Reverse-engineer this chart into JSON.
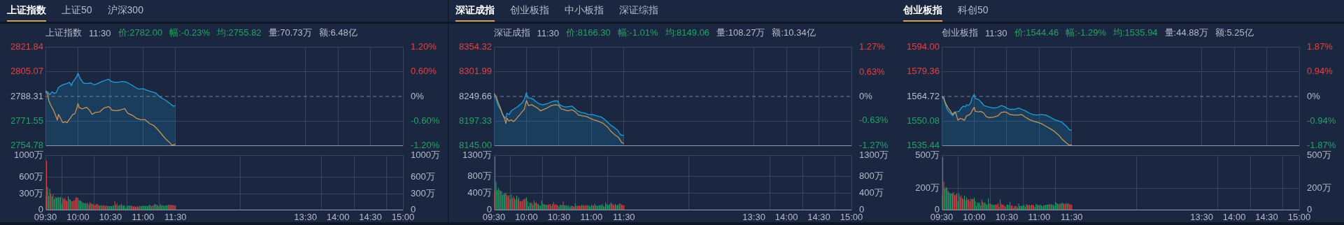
{
  "chart_data": [
    {
      "type": "other",
      "title": "上证指数",
      "annotations": [
        "上证50",
        "沪深300"
      ]
    },
    {
      "type": "line",
      "title": "上证指数",
      "subtitle": "11:30",
      "annotations": [
        "价:2782.00",
        "幅:-0.23%",
        "均:2755.82",
        "量:70.73万",
        "额:6.48亿"
      ],
      "xlim": [
        9.5,
        15
      ],
      "xticks": [
        {
          "value": 9.5,
          "label": null
        },
        {
          "value": 10,
          "label": null
        },
        {
          "value": 10.5,
          "label": null
        },
        {
          "value": 11,
          "label": null
        },
        {
          "value": 11.5,
          "label": null
        },
        {
          "value": 13.5,
          "label": null
        },
        {
          "value": 14,
          "label": null
        },
        {
          "value": 14.5,
          "label": null
        },
        {
          "value": 15,
          "label": null
        }
      ],
      "ylim": [
        2754.78,
        2821.84
      ],
      "yticks": [
        2754.78,
        2771.55,
        2788.31,
        2805.07,
        2821.84
      ],
      "y2lim": [
        -1.2,
        1.2
      ],
      "y2ticks": [
        {
          "value": -1.2,
          "label": "-1.20%"
        },
        {
          "value": -0.6,
          "label": "-0.60%"
        },
        {
          "value": 0,
          "label": "0%"
        },
        {
          "value": 0.6,
          "label": "0.60%"
        },
        {
          "value": 1.2,
          "label": "1.20%"
        }
      ],
      "tick_labels": "y",
      "grid": true,
      "marker": "none",
      "ref_lines": [
        {
          "axis": "y",
          "value": 2788.31,
          "color": "#7a8292",
          "line_style": "dashed"
        }
      ],
      "series": [
        {
          "type": "area",
          "color": "#1e9fd8",
          "x": [
            9.5,
            9.533,
            9.567,
            9.6,
            9.633,
            9.667,
            9.7,
            9.733,
            9.783,
            9.833,
            9.867,
            9.9,
            9.917,
            9.95,
            9.983,
            10,
            10.033,
            10.083,
            10.133,
            10.2,
            10.25,
            10.3,
            10.367,
            10.417,
            10.467,
            10.5,
            10.55,
            10.617,
            10.683,
            10.75,
            10.817,
            10.883,
            10.933,
            11,
            11.067,
            11.133,
            11.2,
            11.25,
            11.3,
            11.35,
            11.417,
            11.467,
            11.5
          ],
          "values": [
            2792.2,
            2791.5,
            2789.5,
            2791.5,
            2790.4,
            2791.0,
            2794.5,
            2795.4,
            2796.6,
            2797.1,
            2798.0,
            2795.7,
            2798.0,
            2799.8,
            2802.1,
            2804.2,
            2800.7,
            2797.5,
            2797.1,
            2797.5,
            2796.3,
            2797.1,
            2798.5,
            2799.3,
            2800.1,
            2798.9,
            2798.0,
            2798.0,
            2798.5,
            2798.0,
            2796.3,
            2794.5,
            2793.3,
            2793.6,
            2792.4,
            2791.5,
            2790.6,
            2788.3,
            2786.9,
            2785.7,
            2783.4,
            2781.6,
            2782.0
          ]
        },
        {
          "type": "line",
          "color": "#c99350",
          "x": [
            9.5,
            9.533,
            9.55,
            9.583,
            9.617,
            9.65,
            9.683,
            9.7,
            9.733,
            9.767,
            9.8,
            9.833,
            9.867,
            9.883,
            9.917,
            9.95,
            9.983,
            10,
            10.017,
            10.067,
            10.1,
            10.133,
            10.183,
            10.217,
            10.267,
            10.333,
            10.4,
            10.467,
            10.5,
            10.517,
            10.583,
            10.65,
            10.717,
            10.767,
            10.85,
            10.9,
            10.967,
            11.033,
            11.1,
            11.167,
            11.233,
            11.3,
            11.35,
            11.417,
            11.45,
            11.5
          ],
          "values": [
            2791.5,
            2790.1,
            2785.7,
            2782.1,
            2779.5,
            2776.0,
            2772.1,
            2776.0,
            2773.3,
            2770.3,
            2771.0,
            2770.3,
            2772.8,
            2773.3,
            2776.0,
            2776.3,
            2780.4,
            2783.5,
            2780.7,
            2779.8,
            2780.4,
            2780.9,
            2778.6,
            2776.0,
            2777.4,
            2777.7,
            2780.4,
            2781.3,
            2780.4,
            2779.0,
            2778.6,
            2779.0,
            2780.0,
            2776.8,
            2775.1,
            2773.3,
            2772.4,
            2772.4,
            2769.8,
            2768.4,
            2765.4,
            2761.8,
            2759.2,
            2756.5,
            2754.8,
            2755.8
          ]
        }
      ]
    },
    {
      "type": "bar",
      "xlim": [
        9.5,
        15
      ],
      "xticks": [
        {
          "value": 9.5,
          "label": "09:30"
        },
        {
          "value": 10,
          "label": "10:00"
        },
        {
          "value": 10.5,
          "label": "10:30"
        },
        {
          "value": 11,
          "label": "11:00"
        },
        {
          "value": 11.5,
          "label": "11:30"
        },
        {
          "value": 13.5,
          "label": "13:30"
        },
        {
          "value": 14,
          "label": "14:00"
        },
        {
          "value": 14.5,
          "label": "14:30"
        },
        {
          "value": 15,
          "label": "15:00"
        }
      ],
      "ylim": [
        0,
        1000
      ],
      "yticks": [
        0,
        {
          "value": 300,
          "label": "300万"
        },
        {
          "value": 600,
          "label": "600万"
        },
        {
          "value": 1000,
          "label": "1000万"
        }
      ],
      "y2lim": [
        0,
        1000
      ],
      "y2ticks": [
        {
          "value": 0,
          "label": "0"
        },
        {
          "value": 300,
          "label": "300万"
        },
        {
          "value": 600,
          "label": "600万"
        },
        {
          "value": 1000,
          "label": "1000万"
        }
      ],
      "grid": true,
      "x": [
        9.5,
        9.517,
        9.533,
        9.55,
        9.567,
        9.583,
        9.6,
        9.617,
        9.633,
        9.65,
        9.667,
        9.683,
        9.7,
        9.717,
        9.733,
        9.75,
        9.767,
        9.783,
        9.8,
        9.817,
        9.833,
        9.85,
        9.867,
        9.883,
        9.9,
        9.917,
        9.933,
        9.95,
        9.967,
        9.983,
        10,
        10.017,
        10.033,
        10.05,
        10.067,
        10.083,
        10.1,
        10.117,
        10.133,
        10.15,
        10.167,
        10.183,
        10.2,
        10.217,
        10.233,
        10.25,
        10.267,
        10.283,
        10.3,
        10.317,
        10.333,
        10.35,
        10.367,
        10.383,
        10.4,
        10.417,
        10.433,
        10.45,
        10.467,
        10.483,
        10.5,
        10.517,
        10.533,
        10.55,
        10.567,
        10.583,
        10.6,
        10.617,
        10.633,
        10.65,
        10.667,
        10.683,
        10.7,
        10.717,
        10.733,
        10.75,
        10.767,
        10.783,
        10.8,
        10.817,
        10.833,
        10.85,
        10.867,
        10.883,
        10.9,
        10.917,
        10.933,
        10.95,
        10.967,
        10.983,
        11,
        11.017,
        11.033,
        11.05,
        11.067,
        11.083,
        11.1,
        11.117,
        11.133,
        11.15,
        11.167,
        11.183,
        11.2,
        11.217,
        11.233,
        11.25,
        11.267,
        11.283,
        11.3,
        11.317,
        11.333,
        11.35,
        11.367,
        11.383,
        11.4,
        11.417,
        11.433,
        11.45,
        11.467,
        11.483,
        11.5
      ],
      "values": [
        270,
        910,
        420,
        260,
        390,
        290,
        250,
        290,
        200,
        240,
        220,
        240,
        230,
        230,
        240,
        110,
        220,
        200,
        220,
        180,
        160,
        250,
        200,
        190,
        160,
        160,
        170,
        180,
        230,
        230,
        220,
        170,
        180,
        160,
        140,
        130,
        120,
        130,
        110,
        130,
        90,
        140,
        120,
        110,
        110,
        90,
        90,
        110,
        110,
        90,
        80,
        90,
        80,
        80,
        90,
        70,
        80,
        80,
        70,
        70,
        70,
        70,
        80,
        80,
        160,
        90,
        120,
        70,
        90,
        90,
        110,
        80,
        80,
        90,
        30,
        70,
        80,
        80,
        80,
        80,
        70,
        60,
        70,
        60,
        60,
        70,
        50,
        80,
        70,
        70,
        80,
        80,
        70,
        80,
        70,
        80,
        100,
        80,
        70,
        80,
        90,
        110,
        100,
        90,
        80,
        70,
        110,
        80,
        90,
        80,
        70,
        90,
        80,
        90,
        100,
        90,
        90,
        90,
        90,
        80,
        80
      ],
      "colors": [
        "#e8413f",
        "#e8413f",
        "#1fa463",
        "#1fa463",
        "#1fa463",
        "#e8413f",
        "#1fa463",
        "#e8413f",
        "#1fa463",
        "#1fa463",
        "#1fa463",
        "#1fa463",
        "#e8413f",
        "#1fa463",
        "#1fa463",
        "#1fa463",
        "#e8413f",
        "#e8413f",
        "#e8413f",
        "#e8413f",
        "#e8413f",
        "#1fa463",
        "#1fa463",
        "#1fa463",
        "#e8413f",
        "#e8413f",
        "#e8413f",
        "#e8413f",
        "#e8413f",
        "#e8413f",
        "#e8413f",
        "#1fa463",
        "#1fa463",
        "#1fa463",
        "#1fa463",
        "#1fa463",
        "#1fa463",
        "#1fa463",
        "#e8413f",
        "#e8413f",
        "#1fa463",
        "#e8413f",
        "#1fa463",
        "#1fa463",
        "#e8413f",
        "#e8413f",
        "#e8413f",
        "#e8413f",
        "#e8413f",
        "#e8413f",
        "#1fa463",
        "#e8413f",
        "#e8413f",
        "#1fa463",
        "#e8413f",
        "#e8413f",
        "#e8413f",
        "#1fa463",
        "#1fa463",
        "#1fa463",
        "#1fa463",
        "#1fa463",
        "#1fa463",
        "#1fa463",
        "#e8413f",
        "#1fa463",
        "#e8413f",
        "#1fa463",
        "#1fa463",
        "#e8413f",
        "#1fa463",
        "#1fa463",
        "#1fa463",
        "#1fa463",
        "#1fa463",
        "#1fa463",
        "#1fa463",
        "#1fa463",
        "#1fa463",
        "#1fa463",
        "#e8413f",
        "#e8413f",
        "#e8413f",
        "#e8413f",
        "#e8413f",
        "#e8413f",
        "#1fa463",
        "#1fa463",
        "#e8413f",
        "#1fa463",
        "#1fa463",
        "#1fa463",
        "#e8413f",
        "#1fa463",
        "#1fa463",
        "#1fa463",
        "#1fa463",
        "#1fa463",
        "#1fa463",
        "#e8413f",
        "#1fa463",
        "#1fa463",
        "#1fa463",
        "#1fa463",
        "#e8413f",
        "#1fa463",
        "#1fa463",
        "#1fa463",
        "#1fa463",
        "#1fa463",
        "#1fa463",
        "#1fa463",
        "#1fa463",
        "#e8413f",
        "#1fa463",
        "#e8413f",
        "#e8413f",
        "#e8413f",
        "#1fa463",
        "#e8413f",
        "#e8413f"
      ]
    },
    {
      "type": "other",
      "title": "深证成指",
      "annotations": [
        "创业板指",
        "中小板指",
        "深证综指"
      ]
    },
    {
      "type": "line",
      "title": "深证成指",
      "subtitle": "11:30",
      "annotations": [
        "价:8166.30",
        "幅:-1.01%",
        "均:8149.06",
        "量:108.27万",
        "额:10.34亿"
      ],
      "xlim": [
        9.5,
        15
      ],
      "xticks": [
        {
          "value": 9.5,
          "label": null
        },
        {
          "value": 10,
          "label": null
        },
        {
          "value": 10.5,
          "label": null
        },
        {
          "value": 11,
          "label": null
        },
        {
          "value": 11.5,
          "label": null
        },
        {
          "value": 13.5,
          "label": null
        },
        {
          "value": 14,
          "label": null
        },
        {
          "value": 14.5,
          "label": null
        },
        {
          "value": 15,
          "label": null
        }
      ],
      "ylim": [
        8145.0,
        8354.32
      ],
      "yticks": [
        {
          "value": 8145,
          "label": "8145.00"
        },
        8197.33,
        8249.66,
        8301.99,
        8354.32
      ],
      "y2lim": [
        -1.27,
        1.27
      ],
      "y2ticks": [
        {
          "value": -1.27,
          "label": "-1.27%"
        },
        {
          "value": -0.63,
          "label": "-0.63%"
        },
        {
          "value": 0,
          "label": "0%"
        },
        {
          "value": 0.63,
          "label": "0.63%"
        },
        {
          "value": 1.27,
          "label": "1.27%"
        }
      ],
      "tick_labels": "y",
      "grid": true,
      "marker": "none",
      "ref_lines": [
        {
          "axis": "y",
          "value": 8249.66,
          "color": "#7a8292",
          "line_style": "dashed"
        }
      ],
      "series": [
        {
          "type": "area",
          "color": "#1e9fd8",
          "x": [
            9.5,
            9.533,
            9.567,
            9.617,
            9.65,
            9.683,
            9.7,
            9.733,
            9.767,
            9.8,
            9.833,
            9.867,
            9.9,
            9.933,
            9.967,
            10,
            10.017,
            10.067,
            10.1,
            10.15,
            10.2,
            10.25,
            10.317,
            10.383,
            10.433,
            10.483,
            10.5,
            10.55,
            10.6,
            10.65,
            10.7,
            10.733,
            10.783,
            10.833,
            10.9,
            10.95,
            11.017,
            11.083,
            11.15,
            11.217,
            11.283,
            11.333,
            11.4,
            11.45,
            11.5
          ],
          "values": [
            8252,
            8244,
            8230,
            8217,
            8208,
            8203,
            8214,
            8211,
            8219,
            8222,
            8225,
            8228,
            8232,
            8236,
            8243,
            8258,
            8247,
            8246,
            8244,
            8238,
            8234,
            8232,
            8234,
            8238,
            8240,
            8240,
            8233,
            8229,
            8227,
            8228,
            8229,
            8225,
            8219,
            8216,
            8214,
            8211,
            8211,
            8208,
            8206,
            8199,
            8190,
            8185,
            8178,
            8168,
            8166
          ]
        },
        {
          "type": "line",
          "color": "#c99350",
          "x": [
            9.5,
            9.533,
            9.567,
            9.6,
            9.633,
            9.667,
            9.683,
            9.7,
            9.733,
            9.767,
            9.8,
            9.833,
            9.867,
            9.9,
            9.933,
            9.967,
            10,
            10.033,
            10.083,
            10.117,
            10.167,
            10.217,
            10.267,
            10.317,
            10.383,
            10.45,
            10.5,
            10.533,
            10.583,
            10.633,
            10.7,
            10.75,
            10.8,
            10.867,
            10.917,
            10.983,
            11.05,
            11.117,
            11.183,
            11.25,
            11.3,
            11.367,
            11.417,
            11.467,
            11.5
          ],
          "values": [
            8256,
            8250,
            8236,
            8225,
            8211,
            8201,
            8192,
            8203,
            8197,
            8200,
            8196,
            8200,
            8206,
            8211,
            8217,
            8222,
            8241,
            8230,
            8232,
            8229,
            8225,
            8219,
            8222,
            8225,
            8230,
            8232,
            8230,
            8223,
            8221,
            8219,
            8221,
            8217,
            8210,
            8208,
            8207,
            8203,
            8199,
            8196,
            8192,
            8184,
            8175,
            8167,
            8162,
            8151,
            8149
          ]
        }
      ]
    },
    {
      "type": "bar",
      "xlim": [
        9.5,
        15
      ],
      "xticks": [
        {
          "value": 9.5,
          "label": "09:30"
        },
        {
          "value": 10,
          "label": "10:00"
        },
        {
          "value": 10.5,
          "label": "10:30"
        },
        {
          "value": 11,
          "label": "11:00"
        },
        {
          "value": 11.5,
          "label": "11:30"
        },
        {
          "value": 13.5,
          "label": "13:30"
        },
        {
          "value": 14,
          "label": "14:00"
        },
        {
          "value": 14.5,
          "label": "14:30"
        },
        {
          "value": 15,
          "label": "15:00"
        }
      ],
      "ylim": [
        0,
        1300
      ],
      "yticks": [
        0,
        {
          "value": 400,
          "label": "400万"
        },
        {
          "value": 800,
          "label": "800万"
        },
        {
          "value": 1300,
          "label": "1300万"
        }
      ],
      "y2lim": [
        0,
        1300
      ],
      "y2ticks": [
        {
          "value": 0,
          "label": "0"
        },
        {
          "value": 400,
          "label": "400万"
        },
        {
          "value": 800,
          "label": "800万"
        },
        {
          "value": 1300,
          "label": "1300万"
        }
      ],
      "grid": true,
      "x": [
        9.5,
        9.517,
        9.533,
        9.55,
        9.567,
        9.583,
        9.6,
        9.617,
        9.633,
        9.65,
        9.667,
        9.683,
        9.7,
        9.717,
        9.733,
        9.75,
        9.767,
        9.783,
        9.8,
        9.817,
        9.833,
        9.85,
        9.867,
        9.883,
        9.9,
        9.917,
        9.933,
        9.95,
        9.967,
        9.983,
        10,
        10.017,
        10.033,
        10.05,
        10.067,
        10.083,
        10.1,
        10.117,
        10.133,
        10.15,
        10.167,
        10.183,
        10.2,
        10.217,
        10.233,
        10.25,
        10.267,
        10.283,
        10.3,
        10.317,
        10.333,
        10.35,
        10.367,
        10.383,
        10.4,
        10.417,
        10.433,
        10.45,
        10.467,
        10.483,
        10.5,
        10.517,
        10.533,
        10.55,
        10.567,
        10.583,
        10.6,
        10.617,
        10.633,
        10.65,
        10.667,
        10.683,
        10.7,
        10.717,
        10.733,
        10.75,
        10.767,
        10.783,
        10.8,
        10.817,
        10.833,
        10.85,
        10.867,
        10.883,
        10.9,
        10.917,
        10.933,
        10.95,
        10.967,
        10.983,
        11,
        11.017,
        11.033,
        11.05,
        11.067,
        11.083,
        11.1,
        11.117,
        11.133,
        11.15,
        11.167,
        11.183,
        11.2,
        11.217,
        11.233,
        11.25,
        11.267,
        11.283,
        11.3,
        11.317,
        11.333,
        11.35,
        11.367,
        11.383,
        11.4,
        11.417,
        11.433,
        11.45,
        11.467,
        11.483,
        11.5
      ],
      "values": [
        460,
        1280,
        670,
        470,
        530,
        480,
        460,
        450,
        360,
        380,
        400,
        400,
        360,
        330,
        350,
        250,
        370,
        280,
        330,
        280,
        250,
        340,
        260,
        300,
        210,
        210,
        200,
        250,
        260,
        270,
        300,
        210,
        90,
        180,
        160,
        180,
        110,
        230,
        160,
        190,
        150,
        140,
        110,
        100,
        230,
        140,
        140,
        130,
        120,
        130,
        120,
        130,
        140,
        90,
        140,
        190,
        120,
        140,
        120,
        110,
        80,
        120,
        120,
        110,
        200,
        110,
        110,
        110,
        90,
        110,
        60,
        100,
        100,
        90,
        70,
        160,
        90,
        100,
        100,
        100,
        90,
        120,
        110,
        110,
        100,
        120,
        100,
        110,
        100,
        80,
        120,
        110,
        100,
        150,
        110,
        100,
        100,
        110,
        120,
        110,
        140,
        100,
        80,
        180,
        140,
        120,
        120,
        140,
        180,
        150,
        130,
        110,
        140,
        110,
        120,
        120,
        160,
        140,
        120,
        110,
        110
      ],
      "colors": [
        "#e8413f",
        "#1fa463",
        "#1fa463",
        "#1fa463",
        "#1fa463",
        "#e8413f",
        "#1fa463",
        "#1fa463",
        "#1fa463",
        "#1fa463",
        "#1fa463",
        "#1fa463",
        "#e8413f",
        "#e8413f",
        "#e8413f",
        "#1fa463",
        "#1fa463",
        "#e8413f",
        "#e8413f",
        "#e8413f",
        "#1fa463",
        "#1fa463",
        "#e8413f",
        "#1fa463",
        "#e8413f",
        "#e8413f",
        "#e8413f",
        "#e8413f",
        "#e8413f",
        "#e8413f",
        "#1fa463",
        "#1fa463",
        "#1fa463",
        "#1fa463",
        "#1fa463",
        "#e8413f",
        "#1fa463",
        "#1fa463",
        "#1fa463",
        "#e8413f",
        "#1fa463",
        "#1fa463",
        "#1fa463",
        "#1fa463",
        "#1fa463",
        "#e8413f",
        "#1fa463",
        "#1fa463",
        "#1fa463",
        "#e8413f",
        "#e8413f",
        "#e8413f",
        "#e8413f",
        "#1fa463",
        "#e8413f",
        "#e8413f",
        "#e8413f",
        "#e8413f",
        "#e8413f",
        "#e8413f",
        "#1fa463",
        "#1fa463",
        "#1fa463",
        "#1fa463",
        "#e8413f",
        "#1fa463",
        "#1fa463",
        "#1fa463",
        "#1fa463",
        "#1fa463",
        "#1fa463",
        "#e8413f",
        "#e8413f",
        "#1fa463",
        "#e8413f",
        "#1fa463",
        "#1fa463",
        "#e8413f",
        "#e8413f",
        "#e8413f",
        "#e8413f",
        "#1fa463",
        "#1fa463",
        "#e8413f",
        "#e8413f",
        "#e8413f",
        "#e8413f",
        "#1fa463",
        "#1fa463",
        "#1fa463",
        "#1fa463",
        "#1fa463",
        "#e8413f",
        "#1fa463",
        "#1fa463",
        "#1fa463",
        "#1fa463",
        "#1fa463",
        "#1fa463",
        "#1fa463",
        "#1fa463",
        "#1fa463",
        "#1fa463",
        "#1fa463",
        "#1fa463",
        "#1fa463",
        "#1fa463",
        "#1fa463",
        "#1fa463",
        "#e8413f",
        "#e8413f",
        "#e8413f",
        "#1fa463",
        "#1fa463",
        "#1fa463",
        "#1fa463",
        "#1fa463",
        "#e8413f",
        "#e8413f",
        "#e8413f",
        "#e8413f"
      ]
    },
    {
      "type": "other",
      "title": "创业板指",
      "annotations": [
        "科创50"
      ]
    },
    {
      "type": "line",
      "title": "创业板指",
      "subtitle": "11:30",
      "annotations": [
        "价:1544.46",
        "幅:-1.29%",
        "均:1535.94",
        "量:44.88万",
        "额:5.25亿"
      ],
      "xlim": [
        9.5,
        15
      ],
      "xticks": [
        {
          "value": 9.5,
          "label": null
        },
        {
          "value": 10,
          "label": null
        },
        {
          "value": 10.5,
          "label": null
        },
        {
          "value": 11,
          "label": null
        },
        {
          "value": 11.5,
          "label": null
        },
        {
          "value": 13.5,
          "label": null
        },
        {
          "value": 14,
          "label": null
        },
        {
          "value": 14.5,
          "label": null
        },
        {
          "value": 15,
          "label": null
        }
      ],
      "ylim": [
        1535.44,
        1594.0
      ],
      "yticks": [
        1535.44,
        1550.08,
        1564.72,
        1579.36,
        {
          "value": 1594,
          "label": "1594.00"
        }
      ],
      "y2lim": [
        -1.87,
        1.87
      ],
      "y2ticks": [
        {
          "value": -1.87,
          "label": "-1.87%"
        },
        {
          "value": -0.94,
          "label": "-0.94%"
        },
        {
          "value": 0,
          "label": "0%"
        },
        {
          "value": 0.94,
          "label": "0.94%"
        },
        {
          "value": 1.87,
          "label": "1.87%"
        }
      ],
      "tick_labels": "y",
      "grid": true,
      "marker": "none",
      "ref_lines": [
        {
          "axis": "y",
          "value": 1564.72,
          "color": "#7a8292",
          "line_style": "dashed"
        }
      ],
      "series": [
        {
          "type": "area",
          "color": "#1e9fd8",
          "x": [
            9.5,
            9.533,
            9.55,
            9.583,
            9.633,
            9.667,
            9.7,
            9.717,
            9.767,
            9.8,
            9.833,
            9.867,
            9.883,
            9.917,
            9.95,
            9.967,
            10,
            10.017,
            10.067,
            10.1,
            10.15,
            10.2,
            10.25,
            10.3,
            10.367,
            10.417,
            10.467,
            10.5,
            10.55,
            10.617,
            10.683,
            10.733,
            10.783,
            10.85,
            10.9,
            10.967,
            11.033,
            11.1,
            11.167,
            11.233,
            11.3,
            11.35,
            11.417,
            11.467,
            11.5
          ],
          "values": [
            1564.7,
            1564.4,
            1560.9,
            1557.0,
            1554.7,
            1553.2,
            1554.7,
            1555.5,
            1555.8,
            1557.8,
            1558.9,
            1558.6,
            1559.8,
            1559.3,
            1561.3,
            1564.0,
            1566.0,
            1563.5,
            1562.9,
            1561.6,
            1559.3,
            1558.6,
            1558.2,
            1557.8,
            1558.2,
            1559.3,
            1558.6,
            1557.8,
            1557.0,
            1557.0,
            1557.8,
            1557.0,
            1556.2,
            1554.7,
            1553.9,
            1553.6,
            1553.9,
            1553.6,
            1552.4,
            1550.9,
            1550.1,
            1549.3,
            1547.0,
            1544.7,
            1544.5
          ]
        },
        {
          "type": "line",
          "color": "#c99350",
          "x": [
            9.5,
            9.533,
            9.567,
            9.6,
            9.633,
            9.667,
            9.7,
            9.717,
            9.75,
            9.783,
            9.817,
            9.85,
            9.883,
            9.917,
            9.95,
            9.967,
            10,
            10.017,
            10.067,
            10.1,
            10.15,
            10.183,
            10.233,
            10.3,
            10.367,
            10.417,
            10.467,
            10.5,
            10.55,
            10.617,
            10.683,
            10.733,
            10.783,
            10.85,
            10.9,
            10.967,
            11.033,
            11.1,
            11.167,
            11.233,
            11.3,
            11.35,
            11.417,
            11.467,
            11.5
          ],
          "values": [
            1564.7,
            1563.2,
            1560.1,
            1557.8,
            1556.2,
            1553.9,
            1555.5,
            1554.7,
            1550.5,
            1551.6,
            1551.2,
            1550.5,
            1553.2,
            1553.6,
            1554.7,
            1556.2,
            1558.2,
            1555.8,
            1555.5,
            1555.8,
            1554.7,
            1552.7,
            1552.1,
            1552.4,
            1553.2,
            1555.2,
            1555.5,
            1555.2,
            1553.9,
            1553.6,
            1553.6,
            1553.9,
            1552.4,
            1550.9,
            1550.1,
            1549.3,
            1548.5,
            1547.0,
            1545.5,
            1543.9,
            1541.6,
            1539.3,
            1537.0,
            1535.5,
            1535.9
          ]
        }
      ]
    },
    {
      "type": "bar",
      "xlim": [
        9.5,
        15
      ],
      "xticks": [
        {
          "value": 9.5,
          "label": "09:30"
        },
        {
          "value": 10,
          "label": "10:00"
        },
        {
          "value": 10.5,
          "label": "10:30"
        },
        {
          "value": 11,
          "label": "11:00"
        },
        {
          "value": 11.5,
          "label": "11:30"
        },
        {
          "value": 13.5,
          "label": "13:30"
        },
        {
          "value": 14,
          "label": "14:00"
        },
        {
          "value": 14.5,
          "label": "14:30"
        },
        {
          "value": 15,
          "label": "15:00"
        }
      ],
      "ylim": [
        0,
        500
      ],
      "yticks": [
        0,
        {
          "value": 200,
          "label": "200万"
        },
        {
          "value": 500,
          "label": "500万"
        }
      ],
      "y2lim": [
        0,
        500
      ],
      "y2ticks": [
        {
          "value": 0,
          "label": "0"
        },
        {
          "value": 200,
          "label": "200万"
        },
        {
          "value": 500,
          "label": "500万"
        }
      ],
      "grid": true,
      "x": [
        9.5,
        9.517,
        9.533,
        9.55,
        9.567,
        9.583,
        9.6,
        9.617,
        9.633,
        9.65,
        9.667,
        9.683,
        9.7,
        9.717,
        9.733,
        9.75,
        9.767,
        9.783,
        9.8,
        9.817,
        9.833,
        9.85,
        9.867,
        9.883,
        9.9,
        9.917,
        9.933,
        9.95,
        9.967,
        9.983,
        10,
        10.017,
        10.033,
        10.05,
        10.067,
        10.083,
        10.1,
        10.117,
        10.133,
        10.15,
        10.167,
        10.183,
        10.2,
        10.217,
        10.233,
        10.25,
        10.267,
        10.283,
        10.3,
        10.317,
        10.333,
        10.35,
        10.367,
        10.383,
        10.4,
        10.417,
        10.433,
        10.45,
        10.467,
        10.483,
        10.5,
        10.517,
        10.533,
        10.55,
        10.567,
        10.583,
        10.6,
        10.617,
        10.633,
        10.65,
        10.667,
        10.683,
        10.7,
        10.717,
        10.733,
        10.75,
        10.767,
        10.783,
        10.8,
        10.817,
        10.833,
        10.85,
        10.867,
        10.883,
        10.9,
        10.917,
        10.933,
        10.95,
        10.967,
        10.983,
        11,
        11.017,
        11.033,
        11.05,
        11.067,
        11.083,
        11.1,
        11.117,
        11.133,
        11.15,
        11.167,
        11.183,
        11.2,
        11.217,
        11.233,
        11.25,
        11.267,
        11.283,
        11.3,
        11.317,
        11.333,
        11.35,
        11.367,
        11.383,
        11.4,
        11.417,
        11.433,
        11.45,
        11.467,
        11.483,
        11.5
      ],
      "values": [
        139,
        487,
        259,
        194,
        212,
        199,
        173,
        160,
        152,
        152,
        154,
        162,
        136,
        139,
        154,
        81,
        152,
        120,
        134,
        107,
        99,
        134,
        89,
        115,
        94,
        99,
        76,
        107,
        99,
        99,
        113,
        81,
        37,
        68,
        63,
        68,
        42,
        94,
        73,
        63,
        68,
        52,
        47,
        107,
        60,
        55,
        50,
        47,
        47,
        47,
        50,
        47,
        60,
        29,
        94,
        55,
        50,
        47,
        37,
        29,
        47,
        50,
        45,
        73,
        39,
        42,
        16,
        37,
        34,
        37,
        21,
        60,
        37,
        37,
        37,
        37,
        47,
        26,
        52,
        47,
        42,
        47,
        42,
        47,
        47,
        42,
        26,
        55,
        50,
        47,
        42,
        50,
        42,
        31,
        42,
        45,
        47,
        47,
        50,
        52,
        47,
        55,
        45,
        47,
        37,
        73,
        63,
        55,
        52,
        58,
        58,
        68,
        60,
        58,
        52,
        63,
        55,
        60,
        52,
        47,
        47
      ],
      "colors": [
        "#1fa463",
        "#1fa463",
        "#e8413f",
        "#1fa463",
        "#1fa463",
        "#e8413f",
        "#1fa463",
        "#1fa463",
        "#1fa463",
        "#1fa463",
        "#1fa463",
        "#e8413f",
        "#e8413f",
        "#e8413f",
        "#e8413f",
        "#1fa463",
        "#1fa463",
        "#e8413f",
        "#e8413f",
        "#e8413f",
        "#e8413f",
        "#1fa463",
        "#1fa463",
        "#1fa463",
        "#e8413f",
        "#e8413f",
        "#e8413f",
        "#e8413f",
        "#e8413f",
        "#e8413f",
        "#1fa463",
        "#1fa463",
        "#1fa463",
        "#1fa463",
        "#1fa463",
        "#1fa463",
        "#1fa463",
        "#1fa463",
        "#e8413f",
        "#1fa463",
        "#1fa463",
        "#1fa463",
        "#1fa463",
        "#1fa463",
        "#e8413f",
        "#1fa463",
        "#1fa463",
        "#1fa463",
        "#1fa463",
        "#e8413f",
        "#e8413f",
        "#e8413f",
        "#e8413f",
        "#1fa463",
        "#e8413f",
        "#e8413f",
        "#e8413f",
        "#e8413f",
        "#e8413f",
        "#1fa463",
        "#1fa463",
        "#1fa463",
        "#1fa463",
        "#e8413f",
        "#e8413f",
        "#e8413f",
        "#1fa463",
        "#e8413f",
        "#e8413f",
        "#e8413f",
        "#1fa463",
        "#1fa463",
        "#1fa463",
        "#1fa463",
        "#1fa463",
        "#1fa463",
        "#1fa463",
        "#1fa463",
        "#1fa463",
        "#e8413f",
        "#e8413f",
        "#e8413f",
        "#1fa463",
        "#e8413f",
        "#e8413f",
        "#e8413f",
        "#1fa463",
        "#1fa463",
        "#1fa463",
        "#e8413f",
        "#e8413f",
        "#1fa463",
        "#1fa463",
        "#1fa463",
        "#1fa463",
        "#1fa463",
        "#1fa463",
        "#1fa463",
        "#1fa463",
        "#1fa463",
        "#e8413f",
        "#1fa463",
        "#1fa463",
        "#e8413f",
        "#1fa463",
        "#1fa463",
        "#1fa463",
        "#1fa463",
        "#1fa463",
        "#e8413f",
        "#1fa463",
        "#1fa463",
        "#1fa463",
        "#e8413f",
        "#e8413f",
        "#1fa463",
        "#1fa463",
        "#e8413f",
        "#e8413f",
        "#e8413f",
        "#e8413f"
      ]
    }
  ]
}
